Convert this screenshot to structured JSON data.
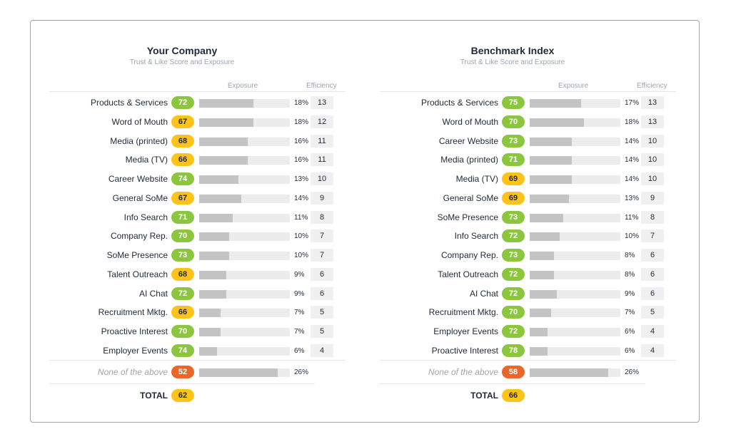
{
  "colors": {
    "green": "#8cc63f",
    "yellow": "#fcc419",
    "orange": "#e8672a"
  },
  "headers": {
    "exposure": "Exposure",
    "efficiency": "Efficiency"
  },
  "chart_data": [
    {
      "type": "bar",
      "title": "Your Company",
      "subtitle": "Trust & Like Score and Exposure",
      "xlim": [
        0,
        30
      ],
      "rows": [
        {
          "label": "Products & Services",
          "score": 72,
          "color": "green",
          "exposure": 18,
          "efficiency": 13
        },
        {
          "label": "Word of Mouth",
          "score": 67,
          "color": "yellow",
          "exposure": 18,
          "efficiency": 12
        },
        {
          "label": "Media (printed)",
          "score": 68,
          "color": "yellow",
          "exposure": 16,
          "efficiency": 11
        },
        {
          "label": "Media (TV)",
          "score": 66,
          "color": "yellow",
          "exposure": 16,
          "efficiency": 11
        },
        {
          "label": "Career Website",
          "score": 74,
          "color": "green",
          "exposure": 13,
          "efficiency": 10
        },
        {
          "label": "General SoMe",
          "score": 67,
          "color": "yellow",
          "exposure": 14,
          "efficiency": 9
        },
        {
          "label": "Info Search",
          "score": 71,
          "color": "green",
          "exposure": 11,
          "efficiency": 8
        },
        {
          "label": "Company Rep.",
          "score": 70,
          "color": "green",
          "exposure": 10,
          "efficiency": 7
        },
        {
          "label": "SoMe Presence",
          "score": 73,
          "color": "green",
          "exposure": 10,
          "efficiency": 7
        },
        {
          "label": "Talent Outreach",
          "score": 68,
          "color": "yellow",
          "exposure": 9,
          "efficiency": 6
        },
        {
          "label": "AI Chat",
          "score": 72,
          "color": "green",
          "exposure": 9,
          "efficiency": 6
        },
        {
          "label": "Recruitment Mktg.",
          "score": 66,
          "color": "yellow",
          "exposure": 7,
          "efficiency": 5
        },
        {
          "label": "Proactive Interest",
          "score": 70,
          "color": "green",
          "exposure": 7,
          "efficiency": 5
        },
        {
          "label": "Employer Events",
          "score": 74,
          "color": "green",
          "exposure": 6,
          "efficiency": 4
        }
      ],
      "none": {
        "label": "None of the above",
        "score": 52,
        "color": "orange",
        "exposure": 26
      },
      "total": {
        "label": "TOTAL",
        "score": 62,
        "color": "yellow"
      }
    },
    {
      "type": "bar",
      "title": "Benchmark Index",
      "subtitle": "Trust & Like Score and Exposure",
      "xlim": [
        0,
        30
      ],
      "rows": [
        {
          "label": "Products & Services",
          "score": 75,
          "color": "green",
          "exposure": 17,
          "efficiency": 13
        },
        {
          "label": "Word of Mouth",
          "score": 70,
          "color": "green",
          "exposure": 18,
          "efficiency": 13
        },
        {
          "label": "Career Website",
          "score": 73,
          "color": "green",
          "exposure": 14,
          "efficiency": 10
        },
        {
          "label": "Media (printed)",
          "score": 71,
          "color": "green",
          "exposure": 14,
          "efficiency": 10
        },
        {
          "label": "Media (TV)",
          "score": 69,
          "color": "yellow",
          "exposure": 14,
          "efficiency": 10
        },
        {
          "label": "General SoMe",
          "score": 69,
          "color": "yellow",
          "exposure": 13,
          "efficiency": 9
        },
        {
          "label": "SoMe Presence",
          "score": 73,
          "color": "green",
          "exposure": 11,
          "efficiency": 8
        },
        {
          "label": "Info Search",
          "score": 72,
          "color": "green",
          "exposure": 10,
          "efficiency": 7
        },
        {
          "label": "Company Rep.",
          "score": 73,
          "color": "green",
          "exposure": 8,
          "efficiency": 6
        },
        {
          "label": "Talent Outreach",
          "score": 72,
          "color": "green",
          "exposure": 8,
          "efficiency": 6
        },
        {
          "label": "AI Chat",
          "score": 72,
          "color": "green",
          "exposure": 9,
          "efficiency": 6
        },
        {
          "label": "Recruitment Mktg.",
          "score": 70,
          "color": "green",
          "exposure": 7,
          "efficiency": 5
        },
        {
          "label": "Employer Events",
          "score": 72,
          "color": "green",
          "exposure": 6,
          "efficiency": 4
        },
        {
          "label": "Proactive Interest",
          "score": 78,
          "color": "green",
          "exposure": 6,
          "efficiency": 4
        }
      ],
      "none": {
        "label": "None of the above",
        "score": 58,
        "color": "orange",
        "exposure": 26
      },
      "total": {
        "label": "TOTAL",
        "score": 66,
        "color": "yellow"
      }
    }
  ]
}
